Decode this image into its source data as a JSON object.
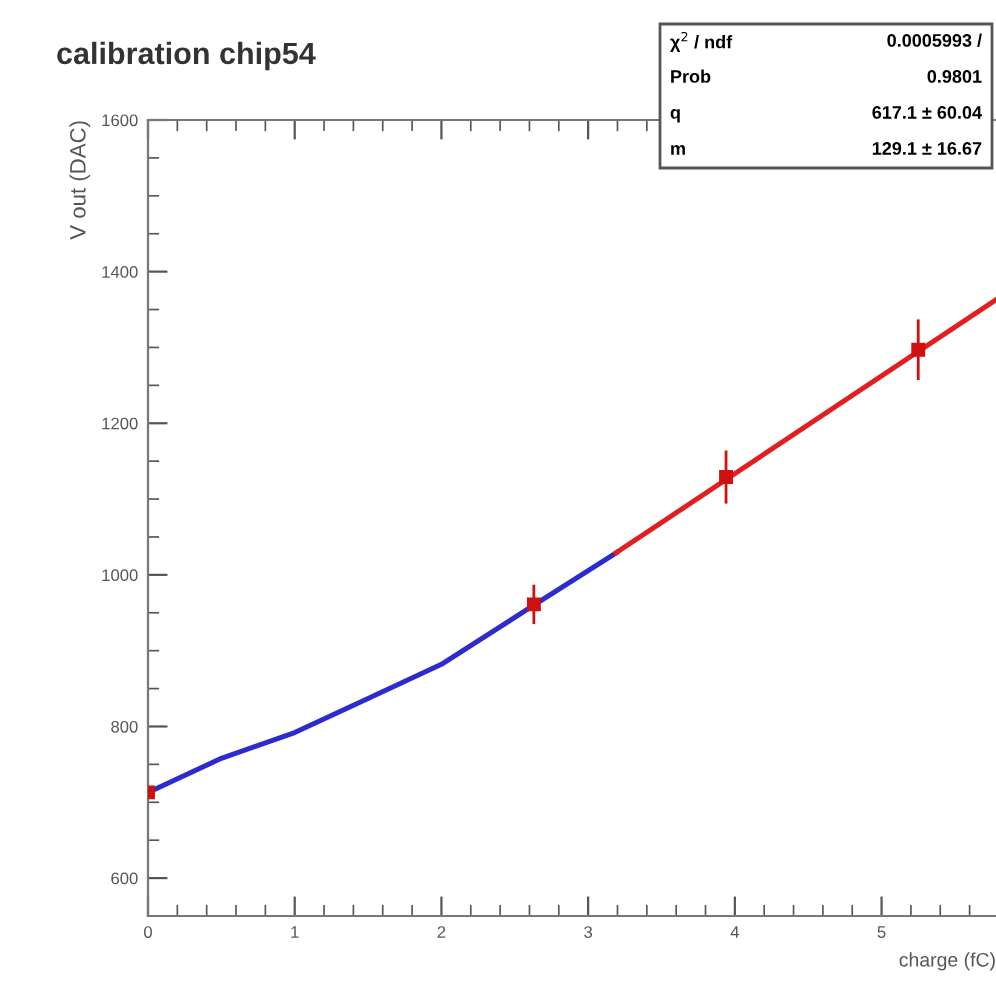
{
  "chart_data": {
    "type": "scatter",
    "title": "calibration chip54",
    "xlabel": "charge (fC)",
    "ylabel": "V out (DAC)",
    "xlim": [
      0,
      5.78
    ],
    "ylim": [
      550,
      1600
    ],
    "xticks": [
      0,
      1,
      2,
      3,
      4,
      5
    ],
    "yticks": [
      600,
      800,
      1000,
      1200,
      1400,
      1600
    ],
    "grid": false,
    "series": [
      {
        "type": "line",
        "color": "#2b2bd0",
        "x": [
          0,
          0.5,
          1,
          1.5,
          2,
          2.63,
          3.19
        ],
        "values": [
          713,
          758,
          792,
          837,
          882,
          960,
          1029
        ]
      },
      {
        "type": "line",
        "color": "#e02020",
        "x": [
          3.19,
          5.78
        ],
        "values": [
          1029,
          1363
        ]
      },
      {
        "marker": "square",
        "color": "#d01010",
        "x": [
          0,
          2.63,
          3.94,
          5.25
        ],
        "values": [
          713,
          961,
          1129,
          1297
        ],
        "errors": [
          null,
          26,
          35,
          40
        ]
      }
    ],
    "annotations": [
      "χ$^{2}$ / ndf",
      "0.0005993 /",
      "Prob",
      "0.9801",
      "q",
      "617.1 ± 60.04",
      "m",
      "129.1 ± 16.67"
    ]
  }
}
